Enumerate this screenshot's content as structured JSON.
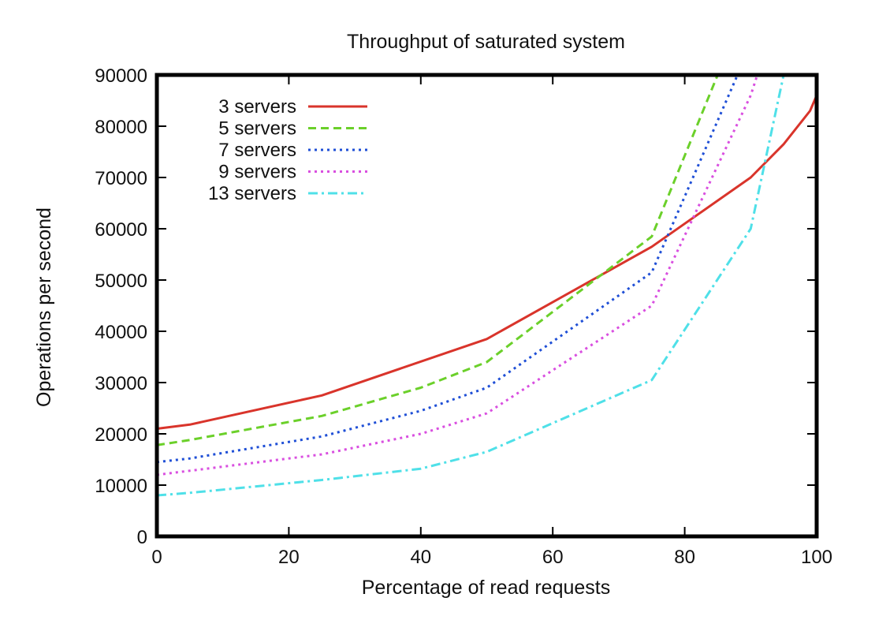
{
  "chart_data": {
    "type": "line",
    "title": "Throughput of saturated system",
    "xlabel": "Percentage of read requests",
    "ylabel": "Operations per second",
    "xlim": [
      0,
      100
    ],
    "ylim": [
      0,
      90000
    ],
    "xticks": [
      0,
      20,
      40,
      60,
      80,
      100
    ],
    "yticks": [
      0,
      10000,
      20000,
      30000,
      40000,
      50000,
      60000,
      70000,
      80000,
      90000
    ],
    "grid": false,
    "legend_position": "top-left",
    "series": [
      {
        "name": "3 servers",
        "color": "#d9342b",
        "dash": "solid",
        "x": [
          0,
          5,
          25,
          50,
          75,
          90,
          95,
          99,
          100
        ],
        "y": [
          21000,
          21800,
          27500,
          38500,
          56500,
          70000,
          76500,
          83000,
          86000
        ]
      },
      {
        "name": "5 servers",
        "color": "#6bd02a",
        "dash": "dashed",
        "x": [
          0,
          5,
          25,
          40,
          50,
          75,
          85
        ],
        "y": [
          17800,
          18800,
          23500,
          29000,
          34000,
          58500,
          90000
        ]
      },
      {
        "name": "7 servers",
        "color": "#1f4fd6",
        "dash": "dotted",
        "x": [
          0,
          5,
          25,
          40,
          50,
          75,
          88
        ],
        "y": [
          14500,
          15200,
          19500,
          24500,
          29000,
          51500,
          90000
        ]
      },
      {
        "name": "9 servers",
        "color": "#d94fe0",
        "dash": "dotted",
        "x": [
          0,
          5,
          25,
          40,
          50,
          75,
          90,
          91
        ],
        "y": [
          12000,
          12800,
          16000,
          20000,
          24000,
          45000,
          86000,
          90000
        ]
      },
      {
        "name": "13 servers",
        "color": "#4fe0e8",
        "dash": "dash-dot",
        "x": [
          0,
          5,
          25,
          40,
          50,
          75,
          90,
          95
        ],
        "y": [
          8000,
          8500,
          11000,
          13200,
          16500,
          30500,
          60000,
          90000
        ]
      }
    ]
  }
}
